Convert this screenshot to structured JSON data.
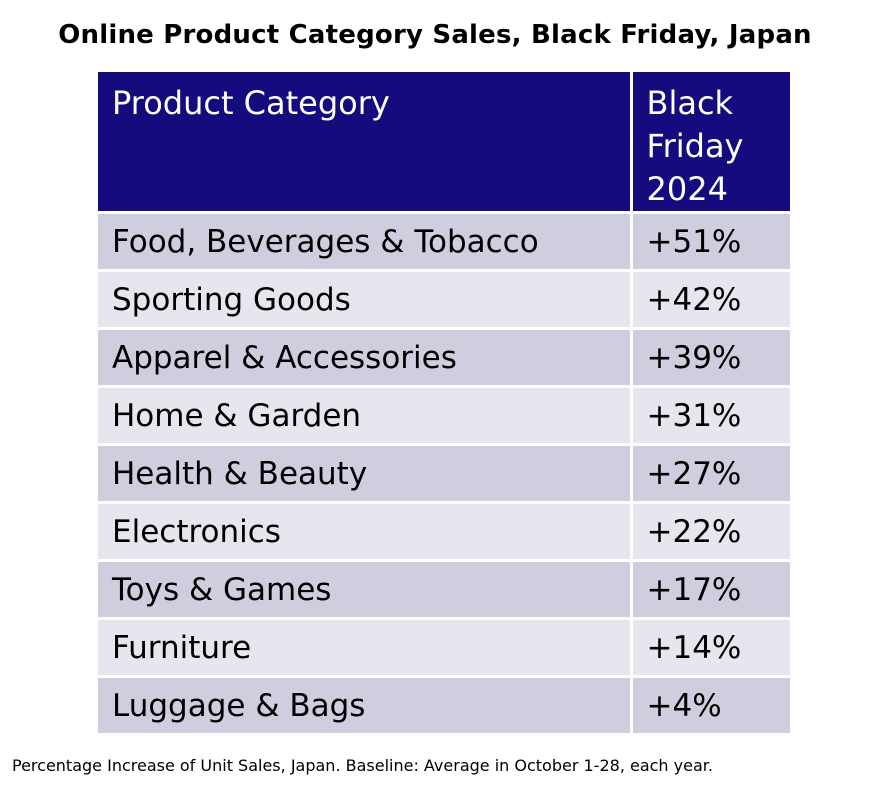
{
  "title": "Online Product Category Sales, Black Friday, Japan",
  "footnote": "Percentage Increase of Unit Sales, Japan. Baseline: Average in October 1-28, each year.",
  "colors": {
    "header_bg": "#130b7e",
    "row_odd": "#cfcede",
    "row_even": "#e7e6ef"
  },
  "chart_data": {
    "type": "table",
    "title": "Online Product Category Sales, Black Friday, Japan",
    "columns": [
      "Product Category",
      "Black Friday 2024"
    ],
    "rows": [
      [
        "Food, Beverages & Tobacco",
        "+51%"
      ],
      [
        "Sporting Goods",
        "+42%"
      ],
      [
        "Apparel & Accessories",
        "+39%"
      ],
      [
        "Home & Garden",
        "+31%"
      ],
      [
        "Health & Beauty",
        "+27%"
      ],
      [
        "Electronics",
        "+22%"
      ],
      [
        "Toys & Games",
        "+17%"
      ],
      [
        "Furniture",
        "+14%"
      ],
      [
        "Luggage & Bags",
        "+4%"
      ]
    ],
    "values": [
      51,
      42,
      39,
      31,
      27,
      22,
      17,
      14,
      4
    ],
    "footnote": "Percentage Increase of Unit Sales, Japan. Baseline: Average in October 1-28, each year."
  }
}
